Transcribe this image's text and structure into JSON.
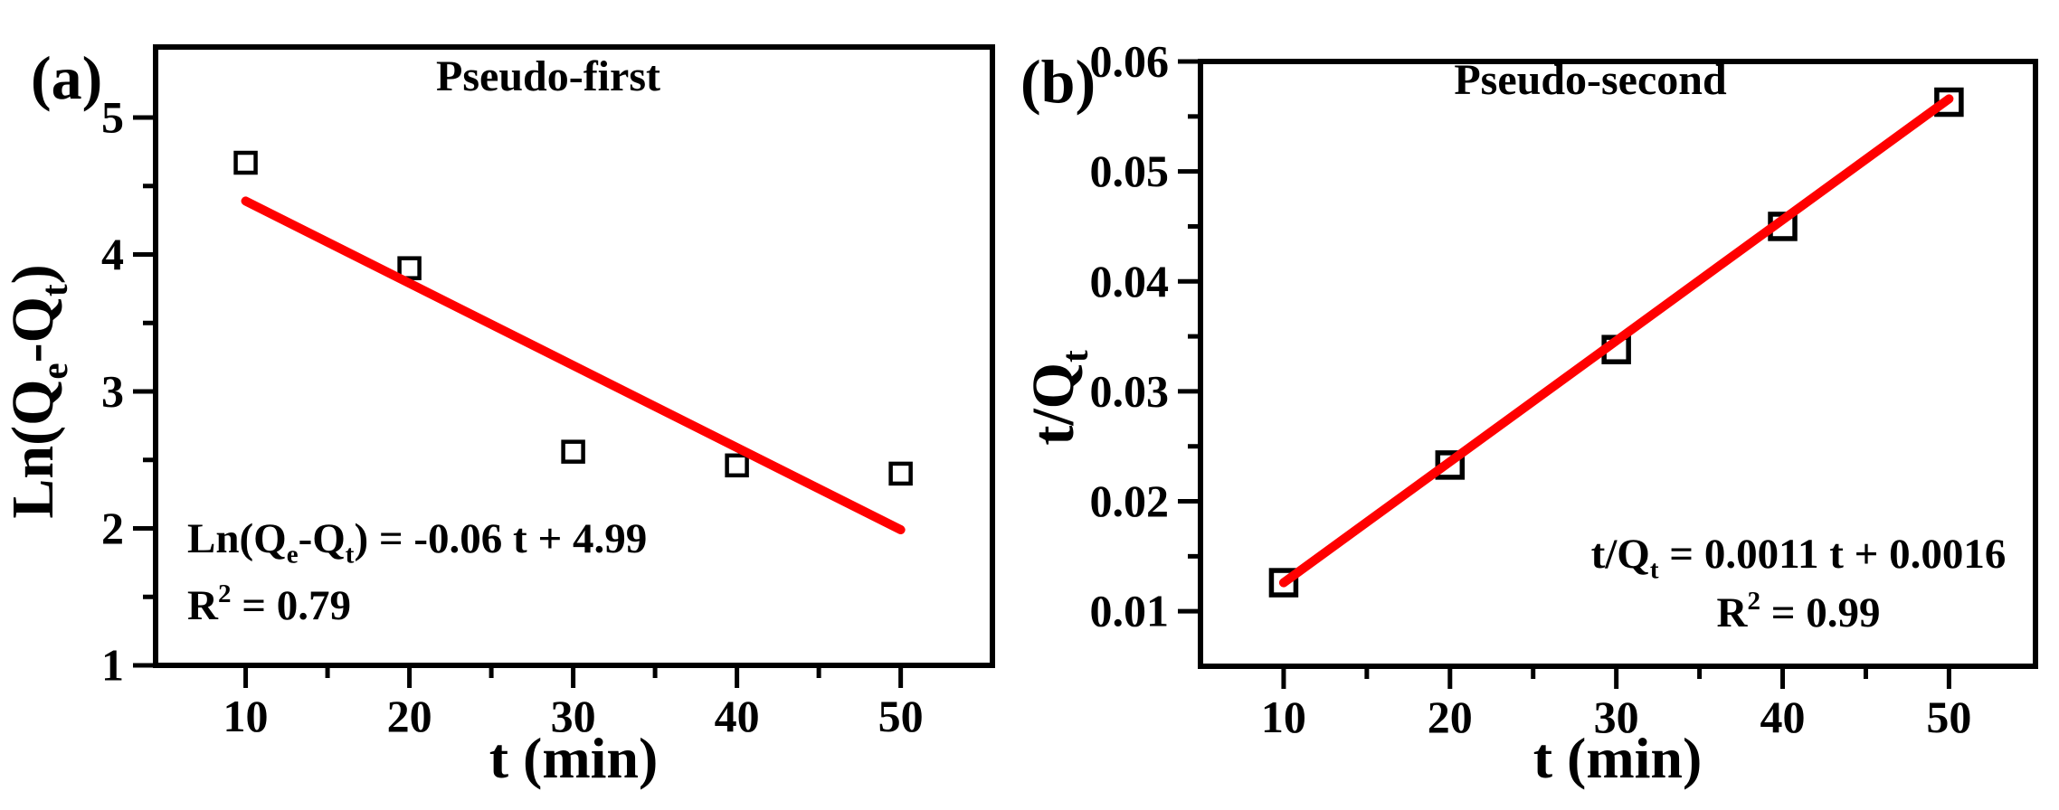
{
  "figure": {
    "type": "scientific-figure",
    "background": "#ffffff",
    "description": "Adsorption kinetics model fitting: pseudo-first-order and pseudo-second-order plots"
  },
  "colors": {
    "fit_line": "#ff0000",
    "axes": "#000000",
    "marker": "#000000",
    "text": "#000000",
    "background": "#ffffff"
  },
  "chart_data": [
    {
      "id": "a",
      "type": "scatter",
      "panel_label": "(a)",
      "title": "Pseudo-first",
      "xlabel": "t (min)",
      "ylabel": "Ln(Q_{e}-Q_{t})",
      "x": [
        10,
        20,
        30,
        40,
        50
      ],
      "y": [
        4.67,
        3.9,
        2.56,
        2.46,
        2.4
      ],
      "marker": "open-square",
      "grid": false,
      "xlim": [
        4.5,
        55.6
      ],
      "ylim": [
        1,
        5.515
      ],
      "xticks": [
        {
          "value": 10,
          "label": "10"
        },
        {
          "value": 20,
          "label": "20"
        },
        {
          "value": 30,
          "label": "30"
        },
        {
          "value": 40,
          "label": "40"
        },
        {
          "value": 50,
          "label": "50"
        }
      ],
      "yticks": [
        {
          "value": 1,
          "label": "1"
        },
        {
          "value": 2,
          "label": "2"
        },
        {
          "value": 3,
          "label": "3"
        },
        {
          "value": 4,
          "label": "4"
        },
        {
          "value": 5,
          "label": "5"
        }
      ],
      "xminorticks": [
        15,
        25,
        35,
        45
      ],
      "yminorticks": [
        1.5,
        2.5,
        3.5,
        4.5
      ],
      "fit_line": {
        "color": "#ff0000",
        "slope": -0.06,
        "intercept": 4.99,
        "x_start": 10,
        "x_end": 50,
        "equation": "Ln(Q_{e}-Q_{t}) = -0.06 t + 4.99",
        "r_squared": 0.79,
        "r_squared_label": "R^{2} = 0.79"
      }
    },
    {
      "id": "b",
      "type": "scatter",
      "panel_label": "(b)",
      "title": "Pseudo-second",
      "xlabel": "t (min)",
      "ylabel": "t/Q_{t}",
      "x": [
        10,
        20,
        30,
        40,
        50
      ],
      "y": [
        0.0126,
        0.0233,
        0.0338,
        0.045,
        0.0563
      ],
      "marker": "open-square",
      "grid": false,
      "xlim": [
        5,
        55.2
      ],
      "ylim": [
        0.005,
        0.06
      ],
      "xticks": [
        {
          "value": 10,
          "label": "10"
        },
        {
          "value": 20,
          "label": "20"
        },
        {
          "value": 30,
          "label": "30"
        },
        {
          "value": 40,
          "label": "40"
        },
        {
          "value": 50,
          "label": "50"
        }
      ],
      "yticks": [
        {
          "value": 0.01,
          "label": "0.01"
        },
        {
          "value": 0.02,
          "label": "0.02"
        },
        {
          "value": 0.03,
          "label": "0.03"
        },
        {
          "value": 0.04,
          "label": "0.04"
        },
        {
          "value": 0.05,
          "label": "0.05"
        },
        {
          "value": 0.06,
          "label": "0.06"
        }
      ],
      "xminorticks": [
        15,
        25,
        35,
        45
      ],
      "yminorticks": [
        0.015,
        0.025,
        0.035,
        0.045,
        0.055
      ],
      "fit_line": {
        "color": "#ff0000",
        "slope": 0.0011,
        "intercept": 0.0016,
        "x_start": 10,
        "x_end": 50,
        "equation": "t/Q_{t} = 0.0011 t + 0.0016",
        "r_squared": 0.99,
        "r_squared_label": "R^{2} = 0.99"
      }
    }
  ]
}
